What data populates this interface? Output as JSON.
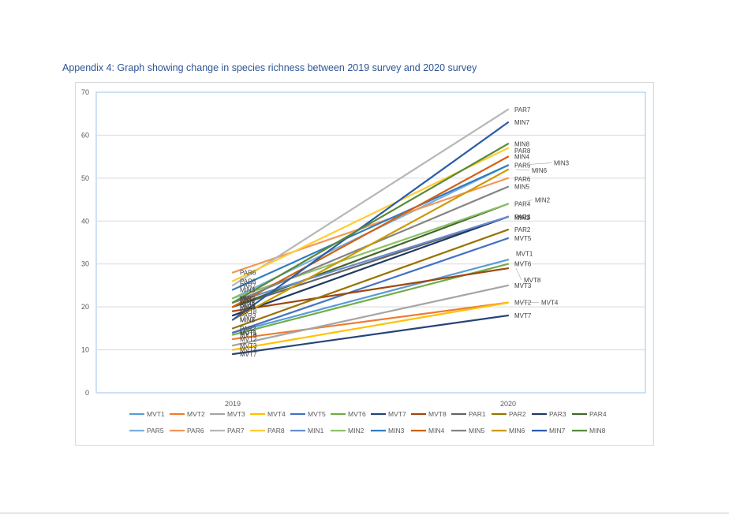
{
  "document": {
    "title": "Appendix 4: Graph showing change in species richness between 2019 survey and 2020 survey"
  },
  "chart_data": {
    "type": "line",
    "title": "",
    "xlabel": "",
    "ylabel": "",
    "categories": [
      "2019",
      "2020"
    ],
    "ylim": [
      0,
      70
    ],
    "yticks": [
      0,
      10,
      20,
      30,
      40,
      50,
      60,
      70
    ],
    "grid": true,
    "legend_position": "bottom",
    "series": [
      {
        "name": "MVT1",
        "values": [
          14,
          31
        ],
        "color": "#5b9bd5"
      },
      {
        "name": "MVT2",
        "values": [
          12.5,
          21
        ],
        "color": "#ed7d31"
      },
      {
        "name": "MVT3",
        "values": [
          11,
          25
        ],
        "color": "#a5a5a5"
      },
      {
        "name": "MVT4",
        "values": [
          10,
          21
        ],
        "color": "#ffc000"
      },
      {
        "name": "MVT5",
        "values": [
          14,
          36
        ],
        "color": "#4472c4"
      },
      {
        "name": "MVT6",
        "values": [
          13.5,
          30
        ],
        "color": "#70ad47"
      },
      {
        "name": "MVT7",
        "values": [
          9,
          18
        ],
        "color": "#264478"
      },
      {
        "name": "MVT8",
        "values": [
          19,
          29
        ],
        "color": "#9e480e"
      },
      {
        "name": "PAR1",
        "values": [
          20,
          41
        ],
        "color": "#636363"
      },
      {
        "name": "PAR2",
        "values": [
          15,
          38
        ],
        "color": "#997300"
      },
      {
        "name": "PAR3",
        "values": [
          18,
          41
        ],
        "color": "#203864"
      },
      {
        "name": "PAR4",
        "values": [
          20,
          44
        ],
        "color": "#43682b"
      },
      {
        "name": "PAR5",
        "values": [
          22,
          53
        ],
        "color": "#7cafdd"
      },
      {
        "name": "PAR6",
        "values": [
          28,
          50
        ],
        "color": "#f1975a"
      },
      {
        "name": "PAR7",
        "values": [
          25,
          66
        ],
        "color": "#b7b7b7"
      },
      {
        "name": "PAR8",
        "values": [
          26,
          57
        ],
        "color": "#ffcd33"
      },
      {
        "name": "MIN1",
        "values": [
          21,
          41
        ],
        "color": "#698ed0"
      },
      {
        "name": "MIN2",
        "values": [
          22,
          44
        ],
        "color": "#8cc168"
      },
      {
        "name": "MIN3",
        "values": [
          24,
          53
        ],
        "color": "#327dc2"
      },
      {
        "name": "MIN4",
        "values": [
          20,
          55
        ],
        "color": "#d26012"
      },
      {
        "name": "MIN5",
        "values": [
          21,
          48
        ],
        "color": "#848484"
      },
      {
        "name": "MIN6",
        "values": [
          17,
          52
        ],
        "color": "#cc9a00"
      },
      {
        "name": "MIN7",
        "values": [
          17,
          63
        ],
        "color": "#2a5da8"
      },
      {
        "name": "MIN8",
        "values": [
          21,
          58
        ],
        "color": "#5a8a39"
      }
    ]
  }
}
